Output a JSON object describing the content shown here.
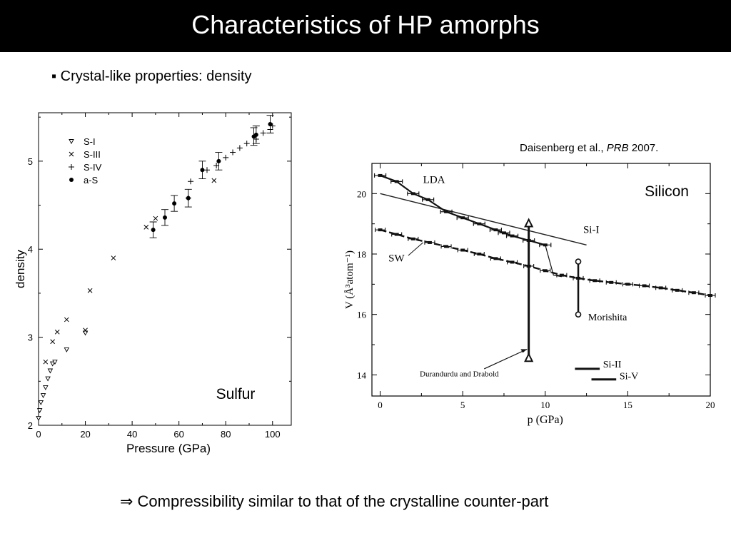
{
  "slide": {
    "title": "Characteristics of HP amorphs",
    "bullet": "▪ Crystal-like properties: density",
    "bottom_note": "⇒ Compressibility similar to that of the crystalline counter-part"
  },
  "citation": {
    "authors": "Daisenberg et al.,",
    "journal": "PRB",
    "year": "2007."
  },
  "chart_data": [
    {
      "type": "scatter",
      "title": "",
      "annotation": "Sulfur",
      "xlabel": "Pressure (GPa)",
      "ylabel": "density",
      "xlim": [
        0,
        108
      ],
      "ylim": [
        2,
        5.55
      ],
      "xticks": [
        0,
        20,
        40,
        60,
        80,
        100
      ],
      "yticks": [
        2,
        3,
        4,
        5
      ],
      "legend_position": "top-left",
      "series": [
        {
          "name": "S-I",
          "marker": "triangle-down",
          "points": [
            [
              0,
              2.08
            ],
            [
              0.5,
              2.17
            ],
            [
              1,
              2.26
            ],
            [
              2,
              2.34
            ],
            [
              3,
              2.43
            ],
            [
              4,
              2.53
            ],
            [
              5,
              2.62
            ],
            [
              6,
              2.7
            ],
            [
              7,
              2.72
            ],
            [
              12,
              2.86
            ],
            [
              20,
              3.05
            ]
          ]
        },
        {
          "name": "S-III",
          "marker": "x",
          "points": [
            [
              3,
              2.72
            ],
            [
              6,
              2.95
            ],
            [
              8,
              3.06
            ],
            [
              12,
              3.2
            ],
            [
              20,
              3.08
            ],
            [
              22,
              3.53
            ],
            [
              32,
              3.9
            ],
            [
              46,
              4.25
            ],
            [
              50,
              4.35
            ],
            [
              75,
              4.78
            ]
          ]
        },
        {
          "name": "S-IV",
          "marker": "plus",
          "points": [
            [
              64,
              4.58
            ],
            [
              65,
              4.77
            ],
            [
              72,
              4.9
            ],
            [
              76,
              4.95
            ],
            [
              80,
              5.04
            ],
            [
              83,
              5.1
            ],
            [
              86,
              5.15
            ],
            [
              89,
              5.2
            ],
            [
              93,
              5.25
            ],
            [
              96,
              5.32
            ],
            [
              99,
              5.36
            ],
            [
              100,
              5.4
            ]
          ]
        },
        {
          "name": "a-S",
          "marker": "dot",
          "points": [
            [
              49,
              4.22,
              0.09
            ],
            [
              54,
              4.36,
              0.09
            ],
            [
              58,
              4.52,
              0.09
            ],
            [
              64,
              4.58,
              0.1
            ],
            [
              70,
              4.9,
              0.1
            ],
            [
              77,
              5.0,
              0.1
            ],
            [
              92,
              5.28,
              0.1
            ],
            [
              93,
              5.3,
              0.1
            ],
            [
              99,
              5.42,
              0.1
            ]
          ]
        }
      ]
    },
    {
      "type": "line",
      "title": "",
      "annotation": "Silicon",
      "xlabel": "p (GPa)",
      "ylabel": "V (Å³atom⁻¹)",
      "xlim": [
        -0.5,
        20
      ],
      "ylim": [
        13.3,
        21.0
      ],
      "xticks": [
        0,
        5,
        10,
        15,
        20
      ],
      "yticks": [
        14,
        16,
        18,
        20
      ],
      "series": [
        {
          "name": "LDA",
          "style": "solid-thin",
          "x": [
            0,
            12.5
          ],
          "y": [
            20.0,
            18.3
          ]
        },
        {
          "name": "Si-I",
          "style": "error-bars",
          "x": [
            0,
            1,
            2,
            2.9,
            4,
            5,
            6,
            7,
            7.5,
            8,
            9,
            10
          ],
          "y": [
            20.6,
            20.4,
            20.0,
            19.8,
            19.4,
            19.2,
            19.0,
            18.8,
            18.7,
            18.6,
            18.45,
            18.3
          ]
        },
        {
          "name": "SW",
          "style": "dashed",
          "x": [
            0,
            1,
            2,
            3,
            4,
            5,
            6,
            7,
            8,
            9,
            10,
            11,
            12,
            13,
            14,
            15,
            16,
            17,
            18,
            19,
            20
          ],
          "y": [
            18.8,
            18.65,
            18.5,
            18.38,
            18.25,
            18.13,
            18.0,
            17.85,
            17.73,
            17.6,
            17.45,
            17.3,
            17.2,
            17.12,
            17.06,
            17.0,
            16.95,
            16.88,
            16.8,
            16.72,
            16.63
          ]
        },
        {
          "name": "Durandurdu and Drabold",
          "style": "vertical-range",
          "x": [
            9,
            9
          ],
          "y": [
            14.5,
            19.05
          ]
        },
        {
          "name": "Morishita",
          "style": "vertical-range",
          "x": [
            12,
            12
          ],
          "y": [
            16.0,
            17.75
          ]
        },
        {
          "name": "Si-II",
          "style": "segment",
          "x": [
            11.8,
            13.3
          ],
          "y": [
            14.2,
            14.2
          ]
        },
        {
          "name": "Si-V",
          "style": "segment",
          "x": [
            12.8,
            14.3
          ],
          "y": [
            13.85,
            13.85
          ]
        }
      ]
    }
  ]
}
